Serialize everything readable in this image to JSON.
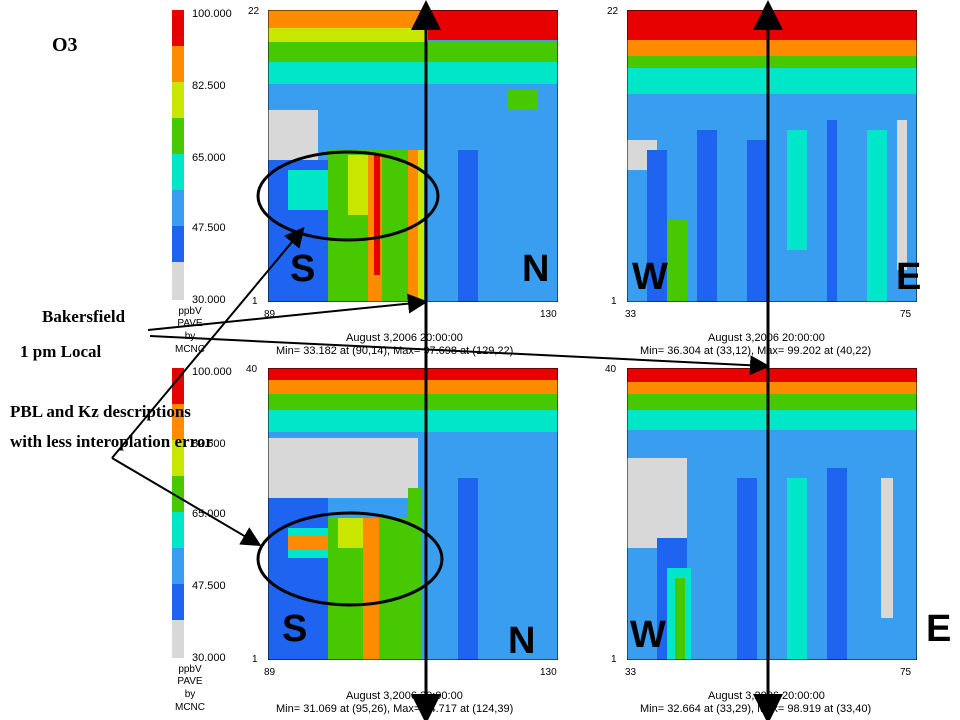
{
  "title": "O3",
  "colorbars": [
    {
      "labels": [
        "100.000",
        "82.500",
        "65.000",
        "47.500",
        "30.000"
      ],
      "unit": "ppbV",
      "brand": [
        "PAVE",
        "by",
        "MCNC"
      ]
    },
    {
      "labels": [
        "100.000",
        "82.500",
        "65.000",
        "47.500",
        "30.000"
      ],
      "unit": "ppbV",
      "brand": [
        "PAVE",
        "by",
        "MCNC"
      ]
    }
  ],
  "colors": [
    "#e60000",
    "#ff8c00",
    "#c8e600",
    "#48c800",
    "#00e6c8",
    "#3a9ef0",
    "#1e64f0",
    "#d8d8d8"
  ],
  "panels": [
    {
      "id": "top-left",
      "ytop": "22",
      "ybot": "1",
      "xleft": "89",
      "xright": "130",
      "timestamp": "August 3,2006 20:00:00",
      "minmax": "Min=  33.182 at (90,14), Max=  97.698 at (129,22)",
      "left_dir": "S",
      "right_dir": "N"
    },
    {
      "id": "top-right",
      "ytop": "22",
      "ybot": "1",
      "xleft": "33",
      "xright": "75",
      "timestamp": "August 3,2006 20:00:00",
      "minmax": "Min=  36.304 at (33,12), Max=  99.202 at (40,22)",
      "left_dir": "W",
      "right_dir": "E"
    },
    {
      "id": "bottom-left",
      "ytop": "40",
      "ybot": "1",
      "xleft": "89",
      "xright": "130",
      "timestamp": "August 3,2006 20:00:00",
      "minmax": "Min=  31.069 at (95,26), Max=  94.717 at (124,39)",
      "left_dir": "S",
      "right_dir": "N"
    },
    {
      "id": "bottom-right",
      "ytop": "40",
      "ybot": "1",
      "xleft": "33",
      "xright": "75",
      "timestamp": "August 3,2006 20:00:00",
      "minmax": "Min=  32.664 at (33,29), Max=  98.919 at (33,40)",
      "left_dir": "W",
      "right_dir": "E"
    }
  ],
  "annotations": {
    "bakersfield": "Bakersfield",
    "local_time": "1 pm Local",
    "pbl_line1": "PBL and Kz descriptions",
    "pbl_line2": "with less interoplation error"
  }
}
